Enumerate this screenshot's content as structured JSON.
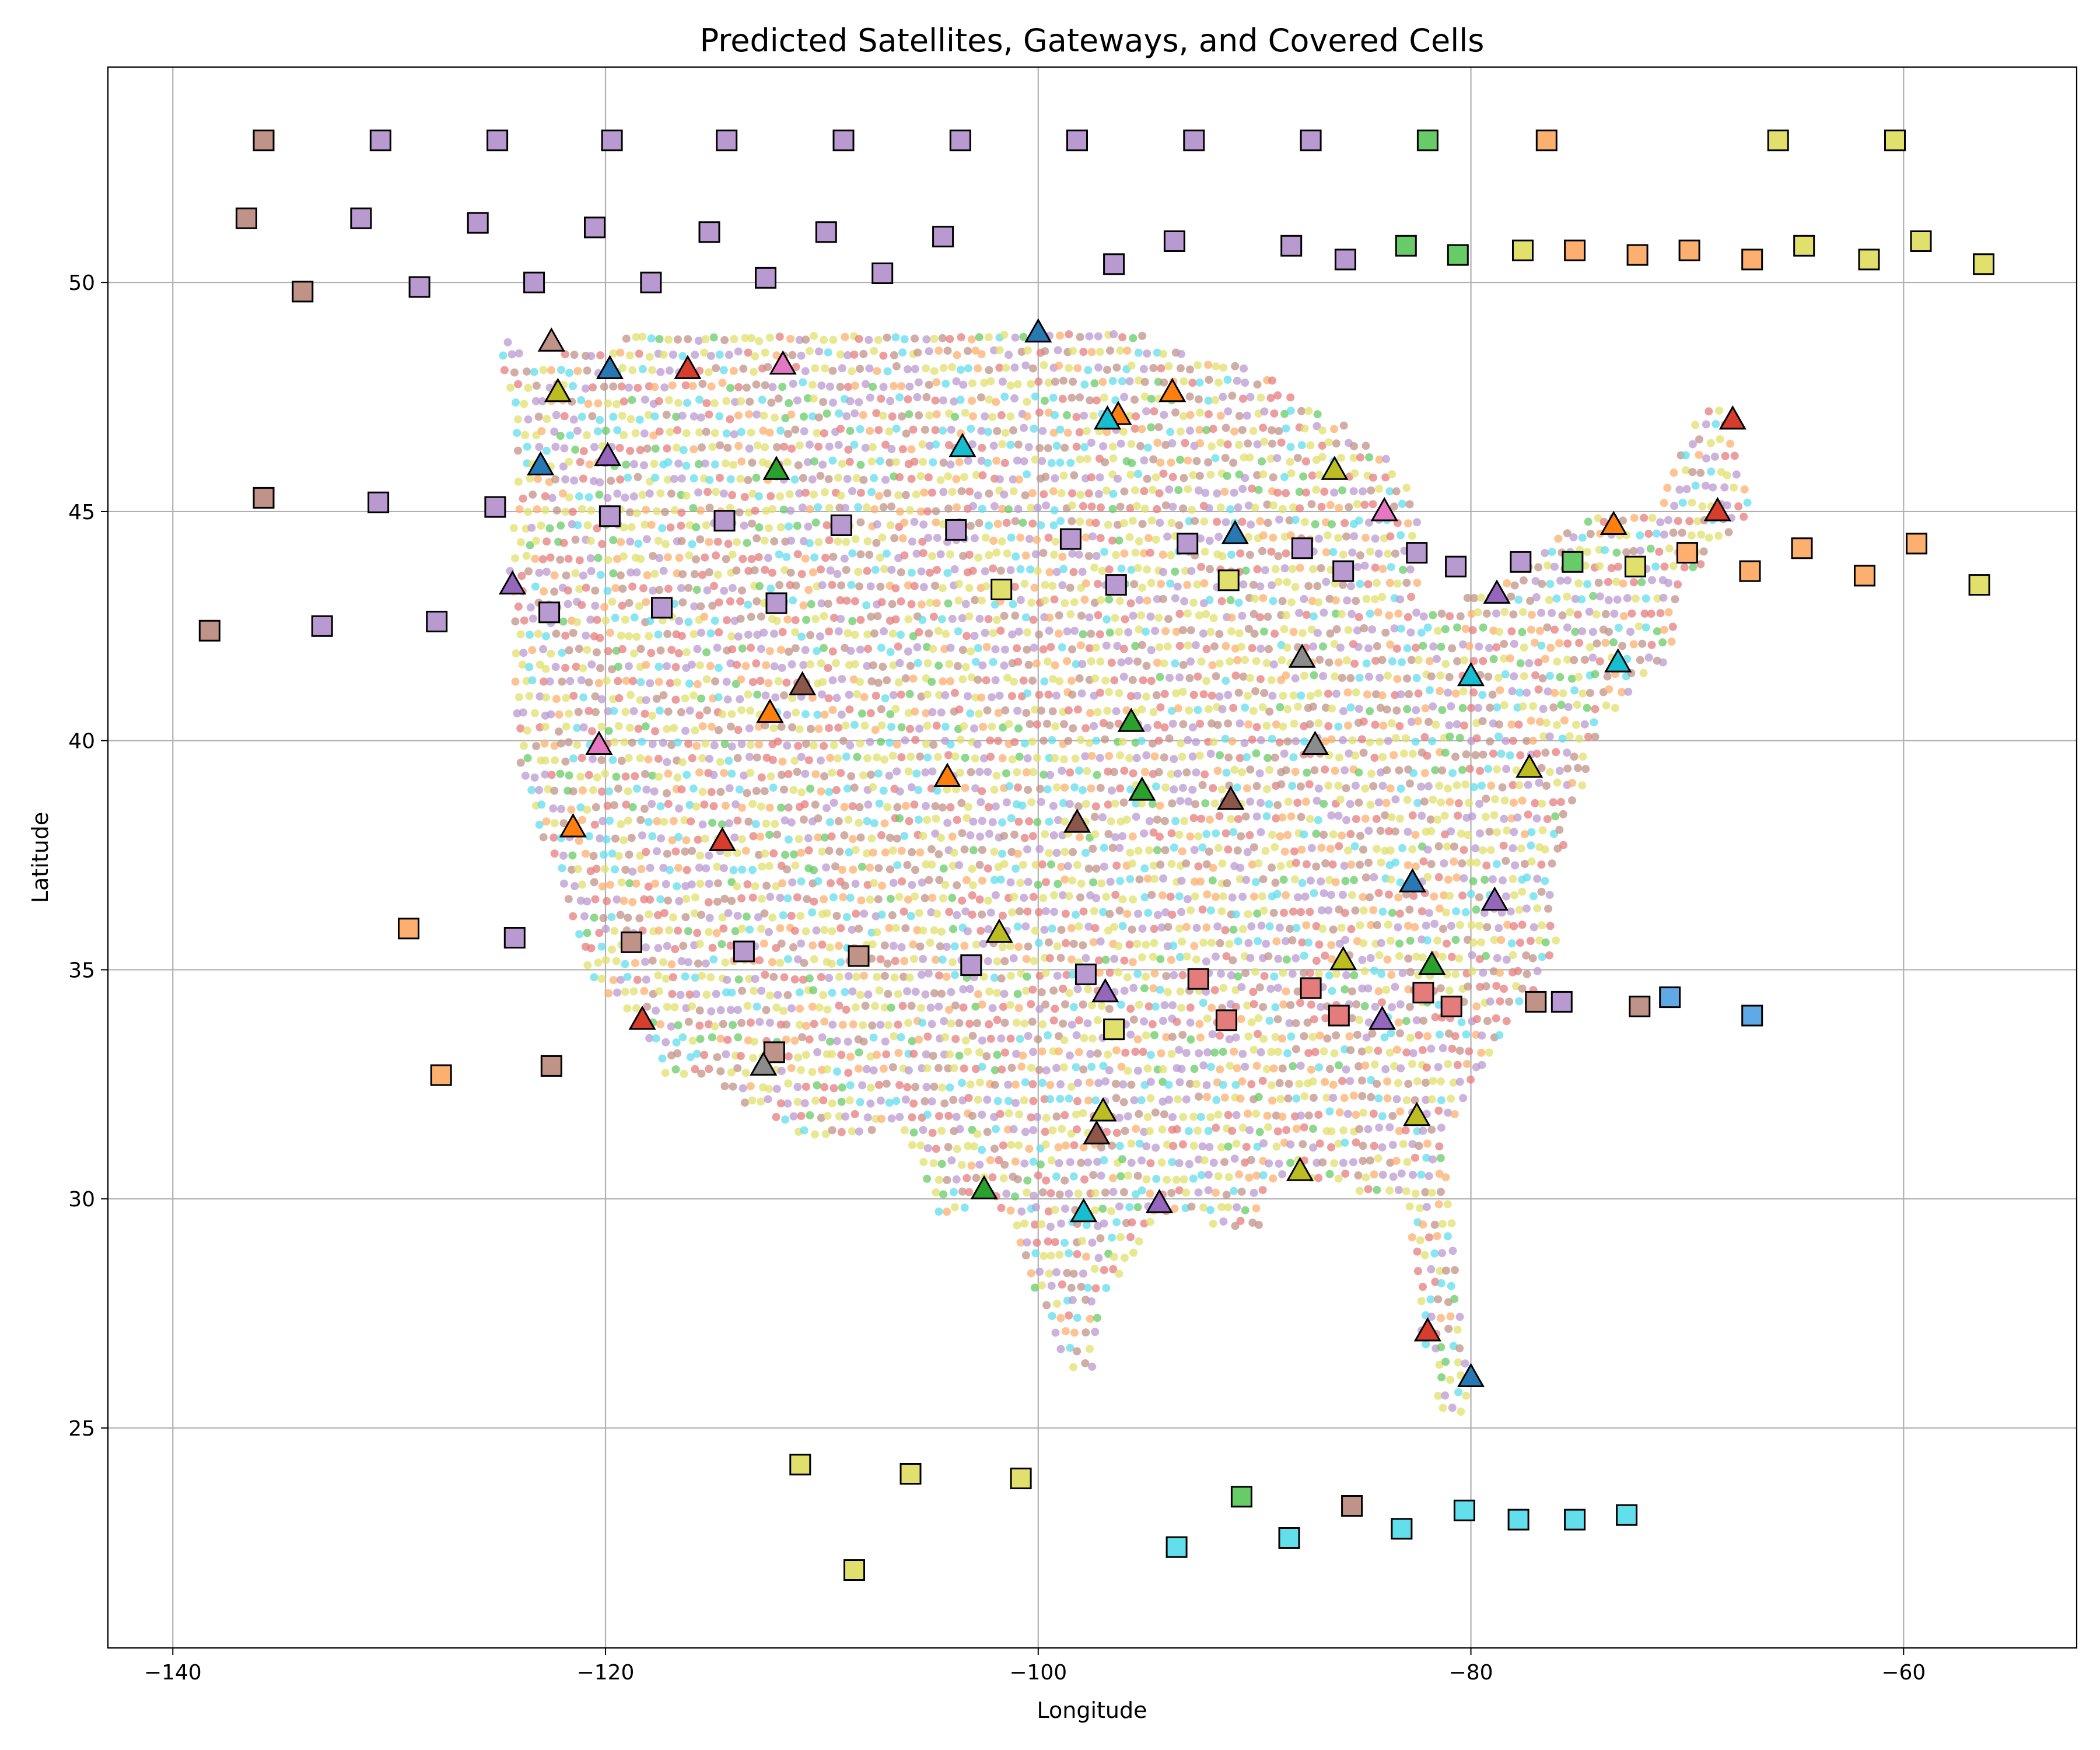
{
  "chart_data": {
    "type": "scatter",
    "title": "Predicted Satellites, Gateways, and Covered Cells",
    "xlabel": "Longitude",
    "ylabel": "Latitude",
    "xlim": [
      -143,
      -52
    ],
    "ylim": [
      20.2,
      54.7
    ],
    "x_ticks": [
      -140,
      -120,
      -100,
      -80,
      -60
    ],
    "y_ticks": [
      25,
      30,
      35,
      40,
      45,
      50
    ],
    "x_tick_labels": [
      "−140",
      "−120",
      "−100",
      "−80",
      "−60"
    ],
    "y_tick_labels": [
      "25",
      "30",
      "35",
      "40",
      "45",
      "50"
    ],
    "grid": true,
    "palette": [
      "#c09388",
      "#b99ad0",
      "#67cb67",
      "#fcaf6f",
      "#e2e06d",
      "#62deec",
      "#e57c7c",
      "#5fa9e6",
      "#f09fd8",
      "#a89d92"
    ],
    "satellites": [
      {
        "x": -135.8,
        "y": 53.1,
        "c": 0
      },
      {
        "x": -130.4,
        "y": 53.1,
        "c": 1
      },
      {
        "x": -125.0,
        "y": 53.1,
        "c": 1
      },
      {
        "x": -119.7,
        "y": 53.1,
        "c": 1
      },
      {
        "x": -114.4,
        "y": 53.1,
        "c": 1
      },
      {
        "x": -109.0,
        "y": 53.1,
        "c": 1
      },
      {
        "x": -103.6,
        "y": 53.1,
        "c": 1
      },
      {
        "x": -98.2,
        "y": 53.1,
        "c": 1
      },
      {
        "x": -92.8,
        "y": 53.1,
        "c": 1
      },
      {
        "x": -87.4,
        "y": 53.1,
        "c": 1
      },
      {
        "x": -82.0,
        "y": 53.1,
        "c": 2
      },
      {
        "x": -76.5,
        "y": 53.1,
        "c": 3
      },
      {
        "x": -65.8,
        "y": 53.1,
        "c": 4
      },
      {
        "x": -60.4,
        "y": 53.1,
        "c": 4
      },
      {
        "x": -136.6,
        "y": 51.4,
        "c": 0
      },
      {
        "x": -131.3,
        "y": 51.4,
        "c": 1
      },
      {
        "x": -125.9,
        "y": 51.3,
        "c": 1
      },
      {
        "x": -120.5,
        "y": 51.2,
        "c": 1
      },
      {
        "x": -115.2,
        "y": 51.1,
        "c": 1
      },
      {
        "x": -109.8,
        "y": 51.1,
        "c": 1
      },
      {
        "x": -104.4,
        "y": 51.0,
        "c": 1
      },
      {
        "x": -93.7,
        "y": 50.9,
        "c": 1
      },
      {
        "x": -88.3,
        "y": 50.8,
        "c": 1
      },
      {
        "x": -83.0,
        "y": 50.8,
        "c": 2
      },
      {
        "x": -80.6,
        "y": 50.6,
        "c": 2
      },
      {
        "x": -77.6,
        "y": 50.7,
        "c": 4
      },
      {
        "x": -75.2,
        "y": 50.7,
        "c": 3
      },
      {
        "x": -72.3,
        "y": 50.6,
        "c": 3
      },
      {
        "x": -69.9,
        "y": 50.7,
        "c": 3
      },
      {
        "x": -67.0,
        "y": 50.5,
        "c": 3
      },
      {
        "x": -64.6,
        "y": 50.8,
        "c": 4
      },
      {
        "x": -61.6,
        "y": 50.5,
        "c": 4
      },
      {
        "x": -59.2,
        "y": 50.9,
        "c": 4
      },
      {
        "x": -56.3,
        "y": 50.4,
        "c": 4
      },
      {
        "x": -134.0,
        "y": 49.8,
        "c": 0
      },
      {
        "x": -128.6,
        "y": 49.9,
        "c": 1
      },
      {
        "x": -123.3,
        "y": 50.0,
        "c": 1
      },
      {
        "x": -117.9,
        "y": 50.0,
        "c": 1
      },
      {
        "x": -112.6,
        "y": 50.1,
        "c": 1
      },
      {
        "x": -107.2,
        "y": 50.2,
        "c": 1
      },
      {
        "x": -96.5,
        "y": 50.4,
        "c": 1
      },
      {
        "x": -85.8,
        "y": 50.5,
        "c": 1
      },
      {
        "x": -135.8,
        "y": 45.3,
        "c": 0
      },
      {
        "x": -130.5,
        "y": 45.2,
        "c": 1
      },
      {
        "x": -125.1,
        "y": 45.1,
        "c": 1
      },
      {
        "x": -119.8,
        "y": 44.9,
        "c": 1
      },
      {
        "x": -114.5,
        "y": 44.8,
        "c": 1
      },
      {
        "x": -109.1,
        "y": 44.7,
        "c": 1
      },
      {
        "x": -103.8,
        "y": 44.6,
        "c": 1
      },
      {
        "x": -98.5,
        "y": 44.4,
        "c": 1
      },
      {
        "x": -93.1,
        "y": 44.3,
        "c": 1
      },
      {
        "x": -87.8,
        "y": 44.2,
        "c": 1
      },
      {
        "x": -82.5,
        "y": 44.1,
        "c": 1
      },
      {
        "x": -77.7,
        "y": 43.9,
        "c": 1
      },
      {
        "x": -75.3,
        "y": 43.9,
        "c": 2
      },
      {
        "x": -72.4,
        "y": 43.8,
        "c": 4
      },
      {
        "x": -70.0,
        "y": 44.1,
        "c": 3
      },
      {
        "x": -67.1,
        "y": 43.7,
        "c": 3
      },
      {
        "x": -64.7,
        "y": 44.2,
        "c": 3
      },
      {
        "x": -61.8,
        "y": 43.6,
        "c": 3
      },
      {
        "x": -59.4,
        "y": 44.3,
        "c": 3
      },
      {
        "x": -56.5,
        "y": 43.4,
        "c": 4
      },
      {
        "x": -138.3,
        "y": 42.4,
        "c": 0
      },
      {
        "x": -133.1,
        "y": 42.5,
        "c": 1
      },
      {
        "x": -127.8,
        "y": 42.6,
        "c": 1
      },
      {
        "x": -122.6,
        "y": 42.8,
        "c": 1
      },
      {
        "x": -117.4,
        "y": 42.9,
        "c": 1
      },
      {
        "x": -112.1,
        "y": 43.0,
        "c": 1
      },
      {
        "x": -101.7,
        "y": 43.3,
        "c": 4
      },
      {
        "x": -96.4,
        "y": 43.4,
        "c": 1
      },
      {
        "x": -91.2,
        "y": 43.5,
        "c": 4
      },
      {
        "x": -85.9,
        "y": 43.7,
        "c": 1
      },
      {
        "x": -80.7,
        "y": 43.8,
        "c": 1
      },
      {
        "x": -129.1,
        "y": 35.9,
        "c": 3
      },
      {
        "x": -124.2,
        "y": 35.7,
        "c": 1
      },
      {
        "x": -118.8,
        "y": 35.6,
        "c": 0
      },
      {
        "x": -113.6,
        "y": 35.4,
        "c": 1
      },
      {
        "x": -108.3,
        "y": 35.3,
        "c": 0
      },
      {
        "x": -103.1,
        "y": 35.1,
        "c": 1
      },
      {
        "x": -97.8,
        "y": 34.9,
        "c": 1
      },
      {
        "x": -92.6,
        "y": 34.8,
        "c": 6
      },
      {
        "x": -87.4,
        "y": 34.6,
        "c": 6
      },
      {
        "x": -82.2,
        "y": 34.5,
        "c": 6
      },
      {
        "x": -77.0,
        "y": 34.3,
        "c": 0
      },
      {
        "x": -75.8,
        "y": 34.3,
        "c": 1
      },
      {
        "x": -72.2,
        "y": 34.2,
        "c": 0
      },
      {
        "x": -70.8,
        "y": 34.4,
        "c": 7
      },
      {
        "x": -67.0,
        "y": 34.0,
        "c": 7
      },
      {
        "x": -86.1,
        "y": 34.0,
        "c": 6
      },
      {
        "x": -91.3,
        "y": 33.9,
        "c": 6
      },
      {
        "x": -96.5,
        "y": 33.7,
        "c": 4
      },
      {
        "x": -80.9,
        "y": 34.2,
        "c": 6
      },
      {
        "x": -127.6,
        "y": 32.7,
        "c": 3
      },
      {
        "x": -122.5,
        "y": 32.9,
        "c": 0
      },
      {
        "x": -112.2,
        "y": 33.2,
        "c": 0
      },
      {
        "x": -111.0,
        "y": 24.2,
        "c": 4
      },
      {
        "x": -105.9,
        "y": 24.0,
        "c": 4
      },
      {
        "x": -100.8,
        "y": 23.9,
        "c": 4
      },
      {
        "x": -108.5,
        "y": 21.9,
        "c": 4
      },
      {
        "x": -90.6,
        "y": 23.5,
        "c": 2
      },
      {
        "x": -85.5,
        "y": 23.3,
        "c": 0
      },
      {
        "x": -80.3,
        "y": 23.2,
        "c": 5
      },
      {
        "x": -77.8,
        "y": 23.0,
        "c": 5
      },
      {
        "x": -75.2,
        "y": 23.0,
        "c": 5
      },
      {
        "x": -72.8,
        "y": 23.1,
        "c": 5
      },
      {
        "x": -93.6,
        "y": 22.4,
        "c": 5
      },
      {
        "x": -88.4,
        "y": 22.6,
        "c": 5
      },
      {
        "x": -83.2,
        "y": 22.8,
        "c": 5
      }
    ],
    "gateways": [
      {
        "x": -122.5,
        "y": 48.7,
        "c": "#c09388"
      },
      {
        "x": -119.8,
        "y": 48.1,
        "c": "#2878b4"
      },
      {
        "x": -116.2,
        "y": 48.1,
        "c": "#d63d2d"
      },
      {
        "x": -111.8,
        "y": 48.2,
        "c": "#e377c2"
      },
      {
        "x": -100.0,
        "y": 48.9,
        "c": "#2878b4"
      },
      {
        "x": -96.3,
        "y": 47.1,
        "c": "#ff7f0e"
      },
      {
        "x": -96.8,
        "y": 47.0,
        "c": "#17becf"
      },
      {
        "x": -93.8,
        "y": 47.6,
        "c": "#ff7f0e"
      },
      {
        "x": -67.9,
        "y": 47.0,
        "c": "#d63d2d"
      },
      {
        "x": -122.2,
        "y": 47.6,
        "c": "#bcbd22"
      },
      {
        "x": -123.0,
        "y": 46.0,
        "c": "#2878b4"
      },
      {
        "x": -119.9,
        "y": 46.2,
        "c": "#9467bd"
      },
      {
        "x": -112.1,
        "y": 45.9,
        "c": "#2ca02c"
      },
      {
        "x": -103.5,
        "y": 46.4,
        "c": "#17becf"
      },
      {
        "x": -86.3,
        "y": 45.9,
        "c": "#bcbd22"
      },
      {
        "x": -84.0,
        "y": 45.0,
        "c": "#e377c2"
      },
      {
        "x": -68.6,
        "y": 45.0,
        "c": "#d63d2d"
      },
      {
        "x": -73.4,
        "y": 44.7,
        "c": "#ff7f0e"
      },
      {
        "x": -90.9,
        "y": 44.5,
        "c": "#2878b4"
      },
      {
        "x": -124.3,
        "y": 43.4,
        "c": "#9467bd"
      },
      {
        "x": -78.8,
        "y": 43.2,
        "c": "#9467bd"
      },
      {
        "x": -87.8,
        "y": 41.8,
        "c": "#8c8c8c"
      },
      {
        "x": -73.2,
        "y": 41.7,
        "c": "#17becf"
      },
      {
        "x": -110.9,
        "y": 41.2,
        "c": "#8c564b"
      },
      {
        "x": -80.0,
        "y": 41.4,
        "c": "#17becf"
      },
      {
        "x": -112.4,
        "y": 40.6,
        "c": "#ff7f0e"
      },
      {
        "x": -95.7,
        "y": 40.4,
        "c": "#2ca02c"
      },
      {
        "x": -120.3,
        "y": 39.9,
        "c": "#e377c2"
      },
      {
        "x": -87.2,
        "y": 39.9,
        "c": "#8c8c8c"
      },
      {
        "x": -77.3,
        "y": 39.4,
        "c": "#bcbd22"
      },
      {
        "x": -104.2,
        "y": 39.2,
        "c": "#ff7f0e"
      },
      {
        "x": -95.2,
        "y": 38.9,
        "c": "#2ca02c"
      },
      {
        "x": -91.1,
        "y": 38.7,
        "c": "#8c564b"
      },
      {
        "x": -98.2,
        "y": 38.2,
        "c": "#8c564b"
      },
      {
        "x": -121.5,
        "y": 38.1,
        "c": "#ff7f0e"
      },
      {
        "x": -114.6,
        "y": 37.8,
        "c": "#d63d2d"
      },
      {
        "x": -82.7,
        "y": 36.9,
        "c": "#2878b4"
      },
      {
        "x": -78.9,
        "y": 36.5,
        "c": "#9467bd"
      },
      {
        "x": -101.8,
        "y": 35.8,
        "c": "#bcbd22"
      },
      {
        "x": -85.9,
        "y": 35.2,
        "c": "#bcbd22"
      },
      {
        "x": -81.8,
        "y": 35.1,
        "c": "#2ca02c"
      },
      {
        "x": -96.9,
        "y": 34.5,
        "c": "#9467bd"
      },
      {
        "x": -118.3,
        "y": 33.9,
        "c": "#d63d2d"
      },
      {
        "x": -84.1,
        "y": 33.9,
        "c": "#9467bd"
      },
      {
        "x": -112.7,
        "y": 32.9,
        "c": "#8c8c8c"
      },
      {
        "x": -97.0,
        "y": 31.9,
        "c": "#bcbd22"
      },
      {
        "x": -97.3,
        "y": 31.4,
        "c": "#8c564b"
      },
      {
        "x": -82.5,
        "y": 31.8,
        "c": "#bcbd22"
      },
      {
        "x": -87.9,
        "y": 30.6,
        "c": "#bcbd22"
      },
      {
        "x": -102.5,
        "y": 30.2,
        "c": "#2ca02c"
      },
      {
        "x": -94.4,
        "y": 29.9,
        "c": "#9467bd"
      },
      {
        "x": -97.9,
        "y": 29.7,
        "c": "#17becf"
      },
      {
        "x": -82.0,
        "y": 27.1,
        "c": "#d63d2d"
      },
      {
        "x": -80.0,
        "y": 26.1,
        "c": "#2878b4"
      }
    ],
    "cells": {
      "region_outline": [
        [
          -124.8,
          48.8
        ],
        [
          -123.4,
          48.3
        ],
        [
          -117.0,
          49.0
        ],
        [
          -95.2,
          49.0
        ],
        [
          -94.6,
          48.7
        ],
        [
          -89.6,
          48.0
        ],
        [
          -84.5,
          46.5
        ],
        [
          -82.4,
          45.3
        ],
        [
          -82.5,
          42.8
        ],
        [
          -79.0,
          43.3
        ],
        [
          -76.0,
          44.4
        ],
        [
          -74.7,
          45.0
        ],
        [
          -71.5,
          45.0
        ],
        [
          -69.2,
          47.4
        ],
        [
          -67.8,
          47.1
        ],
        [
          -67.0,
          44.8
        ],
        [
          -70.2,
          43.5
        ],
        [
          -70.6,
          42.0
        ],
        [
          -71.8,
          41.3
        ],
        [
          -74.0,
          40.4
        ],
        [
          -74.9,
          38.9
        ],
        [
          -76.2,
          37.0
        ],
        [
          -75.8,
          35.5
        ],
        [
          -78.0,
          33.9
        ],
        [
          -79.3,
          33.0
        ],
        [
          -81.3,
          31.4
        ],
        [
          -80.5,
          28.3
        ],
        [
          -80.1,
          25.4
        ],
        [
          -81.2,
          25.1
        ],
        [
          -82.6,
          27.7
        ],
        [
          -82.9,
          29.9
        ],
        [
          -84.3,
          30.0
        ],
        [
          -86.1,
          30.3
        ],
        [
          -89.6,
          30.2
        ],
        [
          -89.4,
          29.2
        ],
        [
          -91.2,
          29.3
        ],
        [
          -93.8,
          29.7
        ],
        [
          -95.0,
          29.2
        ],
        [
          -97.2,
          27.6
        ],
        [
          -97.4,
          26.0
        ],
        [
          -99.1,
          26.5
        ],
        [
          -100.3,
          28.2
        ],
        [
          -101.4,
          29.8
        ],
        [
          -102.8,
          29.8
        ],
        [
          -104.5,
          29.6
        ],
        [
          -106.5,
          31.8
        ],
        [
          -108.2,
          31.3
        ],
        [
          -111.1,
          31.3
        ],
        [
          -114.8,
          32.5
        ],
        [
          -117.1,
          32.5
        ],
        [
          -118.5,
          34.0
        ],
        [
          -120.6,
          34.6
        ],
        [
          -122.4,
          37.2
        ],
        [
          -123.7,
          38.9
        ],
        [
          -124.2,
          40.3
        ],
        [
          -124.2,
          42.0
        ],
        [
          -124.5,
          44.0
        ],
        [
          -124.0,
          46.2
        ],
        [
          -124.7,
          47.9
        ]
      ],
      "alpha": 0.75,
      "color_mix": [
        0,
        1,
        4,
        6,
        3,
        5,
        1,
        4,
        0,
        6,
        4,
        1,
        3,
        4,
        6,
        0,
        5,
        1,
        4,
        2
      ]
    }
  }
}
